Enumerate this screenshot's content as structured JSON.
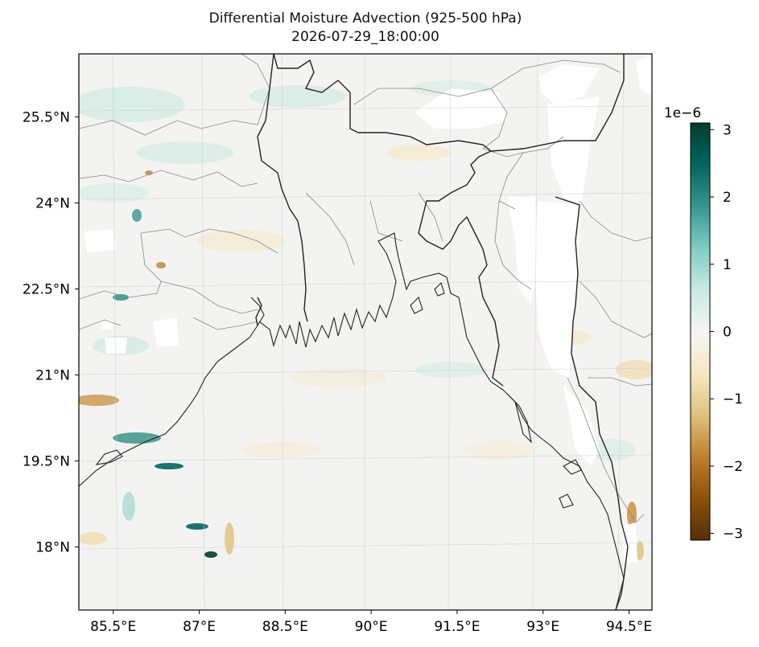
{
  "figure": {
    "title": "Differential Moisture Advection (925-500 hPa)",
    "subtitle": "2026-07-29_18:00:00"
  },
  "map": {
    "extent_lon": [
      84.9,
      94.9
    ],
    "extent_lat": [
      16.9,
      26.6
    ],
    "x_ticks": [
      "85.5°E",
      "87°E",
      "88.5°E",
      "90°E",
      "91.5°E",
      "93°E",
      "94.5°E"
    ],
    "x_tick_values": [
      85.5,
      87,
      88.5,
      90,
      91.5,
      93,
      94.5
    ],
    "y_ticks": [
      "25.5°N",
      "24°N",
      "22.5°N",
      "21°N",
      "19.5°N",
      "18°N"
    ],
    "y_tick_values": [
      25.5,
      24,
      22.5,
      21,
      19.5,
      18
    ],
    "gridlines": true,
    "features": [
      "coastline",
      "country borders",
      "state borders"
    ]
  },
  "colorbar": {
    "colormap": "BrBG",
    "exponent_label": "1e−6",
    "range": [
      -3.1,
      3.1
    ],
    "tick_labels": [
      "3",
      "2",
      "1",
      "0",
      "−1",
      "−2",
      "−3"
    ],
    "tick_values": [
      3,
      2,
      1,
      0,
      -1,
      -2,
      -3
    ],
    "colors": [
      "#003c30",
      "#01665e",
      "#35978f",
      "#80cdc1",
      "#c7eae5",
      "#f5f5f5",
      "#f6e8c3",
      "#dfc27d",
      "#bf812d",
      "#8c510a",
      "#543005"
    ]
  }
}
